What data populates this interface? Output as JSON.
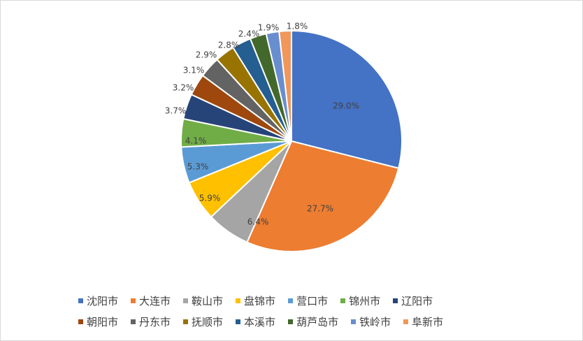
{
  "chart_data": {
    "type": "pie",
    "title": "",
    "legend_position": "bottom",
    "categories": [
      "沈阳市",
      "大连市",
      "鞍山市",
      "盘锦市",
      "营口市",
      "锦州市",
      "辽阳市",
      "朝阳市",
      "丹东市",
      "抚顺市",
      "本溪市",
      "葫芦岛市",
      "铁岭市",
      "阜新市"
    ],
    "values": [
      29.0,
      27.7,
      6.4,
      5.9,
      5.3,
      4.1,
      3.7,
      3.2,
      3.1,
      2.9,
      2.8,
      2.4,
      1.9,
      1.8
    ],
    "labels": [
      "29.0%",
      "27.7%",
      "6.4%",
      "5.9%",
      "5.3%",
      "4.1%",
      "3.7%",
      "3.2%",
      "3.1%",
      "2.9%",
      "2.8%",
      "2.4%",
      "1.9%",
      "1.8%"
    ],
    "colors": [
      "#4472C4",
      "#ED7D31",
      "#A5A5A5",
      "#FFC000",
      "#5B9BD5",
      "#70AD47",
      "#264478",
      "#9E480E",
      "#636363",
      "#997300",
      "#255E91",
      "#43682B",
      "#698ED0",
      "#F1975A"
    ]
  }
}
